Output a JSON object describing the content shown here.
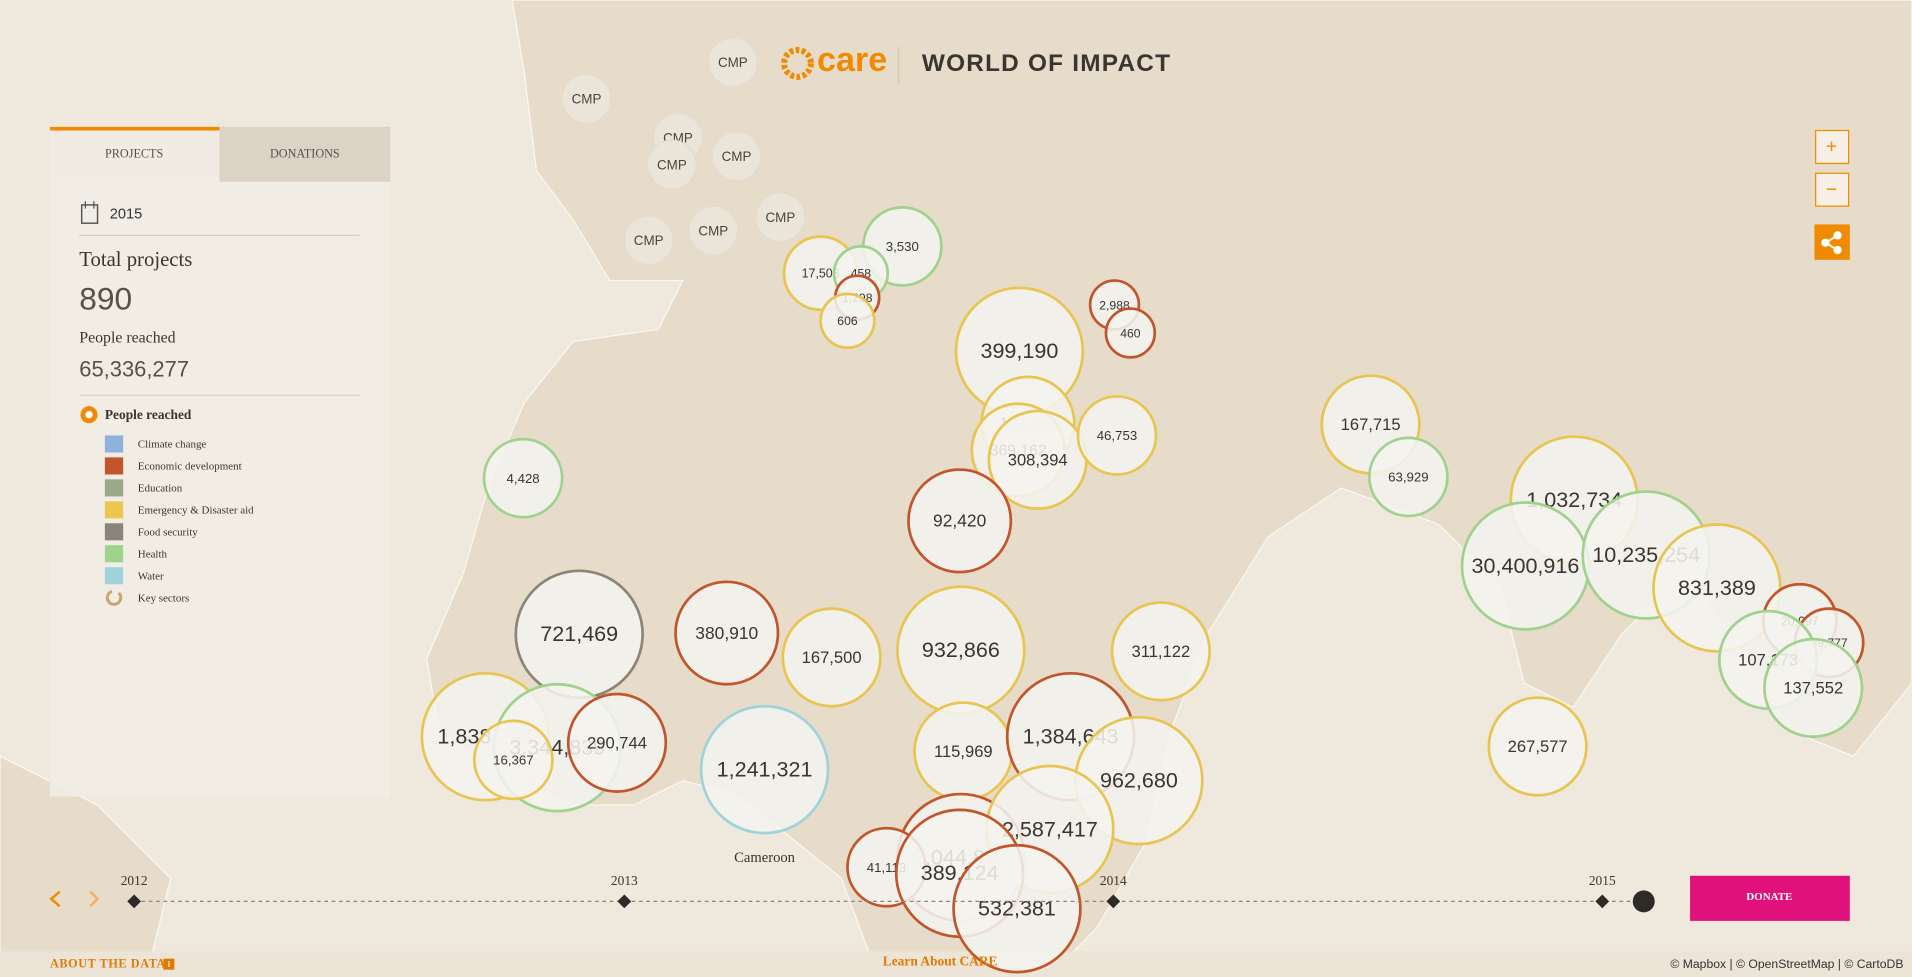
{
  "header": {
    "logo": "care",
    "title": "WORLD OF IMPACT"
  },
  "panel": {
    "tabs": [
      "PROJECTS",
      "DONATIONS"
    ],
    "year": "2015",
    "total_projects_label": "Total projects",
    "total_projects": "890",
    "people_reached_label": "People reached",
    "people_reached": "65,336,277",
    "legend_title": "People reached",
    "legend": [
      {
        "label": "Climate change",
        "color": "#8fb2dc"
      },
      {
        "label": "Economic development",
        "color": "#c1552c"
      },
      {
        "label": "Education",
        "color": "#9aa88a"
      },
      {
        "label": "Emergency & Disaster aid",
        "color": "#ecc64e"
      },
      {
        "label": "Food security",
        "color": "#8b8478"
      },
      {
        "label": "Health",
        "color": "#9fd28c"
      },
      {
        "label": "Water",
        "color": "#9fd3dc"
      }
    ],
    "key_sectors_label": "Key sectors"
  },
  "map": {
    "cmp_bubbles": [
      "CMP",
      "CMP",
      "CMP",
      "CMP",
      "CMP",
      "CMP",
      "CMP",
      "CMP"
    ],
    "bubbles": [
      "3,530",
      "17,508",
      "458",
      "1,298",
      "606",
      "2,988",
      "460",
      "399,190",
      "123,219",
      "369,162",
      "308,394",
      "46,753",
      "92,420",
      "4,428",
      "167,715",
      "63,929",
      "1,032,734",
      "30,400,916",
      "10,235,254",
      "831,389",
      "20,097",
      "59,777",
      "107,173",
      "137,552",
      "267,577",
      "721,469",
      "380,910",
      "167,500",
      "932,866",
      "311,122",
      "1,838,294",
      "3,344,839",
      "16,367",
      "290,744",
      "1,241,321",
      "115,969",
      "1,384,643",
      "962,680",
      "2,044,812",
      "2,587,417",
      "41,113",
      "389,124",
      "532,381"
    ],
    "place_label": "Cameroon"
  },
  "controls": {
    "zoom_in": "+",
    "zoom_out": "−"
  },
  "timeline": {
    "years": [
      "2012",
      "2013",
      "2014",
      "2015"
    ]
  },
  "donate": "DONATE",
  "footer": {
    "about": "ABOUT THE DATA",
    "info": "i",
    "learn": "Learn About CARE",
    "attribution": "© Mapbox | © OpenStreetMap | © CartoDB"
  }
}
